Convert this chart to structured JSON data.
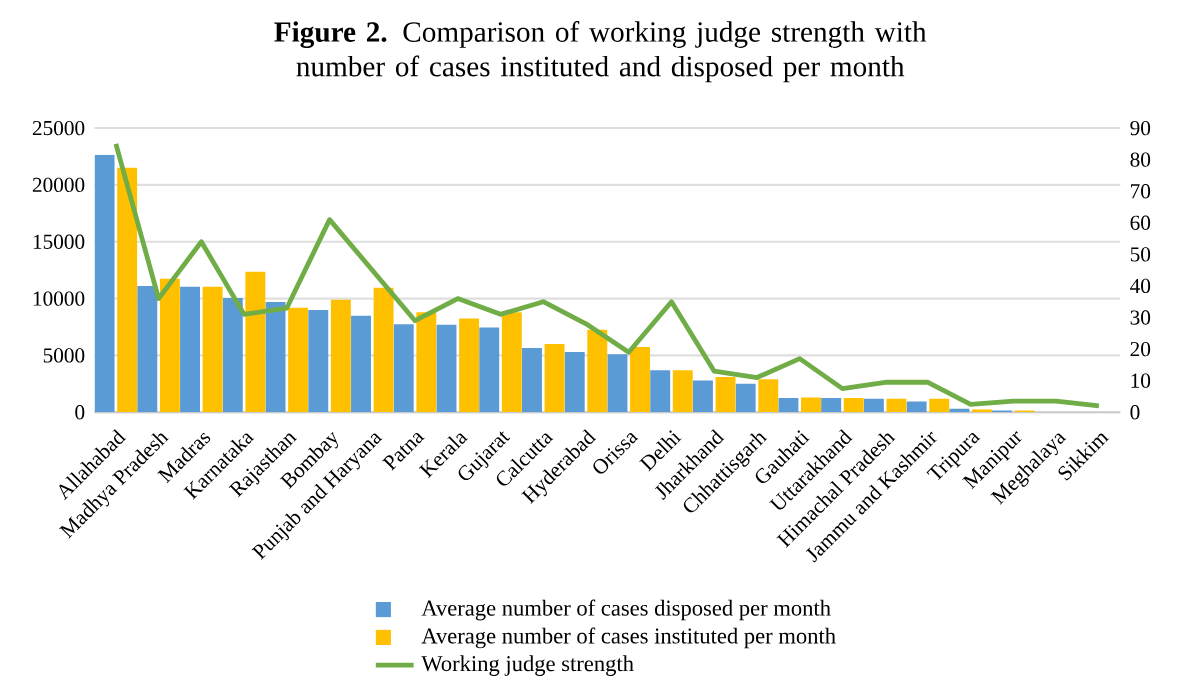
{
  "chart_data": {
    "type": "bar",
    "title": "**Figure 2.** Comparison of working judge strength with number of cases instituted and disposed per month",
    "categories": [
      "Allahabad",
      "Madhya Pradesh",
      "Madras",
      "Karnataka",
      "Rajasthan",
      "Bombay",
      "Punjab and Haryana",
      "Patna",
      "Kerala",
      "Gujarat",
      "Calcutta",
      "Hyderabad",
      "Orissa",
      "Delhi",
      "Jharkhand",
      "Chhattisgarh",
      "Gauhati",
      "Uttarakhand",
      "Himachal Pradesh",
      "Jammu and Kashmir",
      "Tripura",
      "Manipur",
      "Meghalaya",
      "Sikkim"
    ],
    "series": [
      {
        "name": "Average number of cases disposed per month",
        "color": "#5b9bd5",
        "values": [
          22650,
          11100,
          11050,
          10050,
          9700,
          9000,
          8500,
          7750,
          7700,
          7450,
          5650,
          5300,
          5100,
          3700,
          2800,
          2500,
          1250,
          1250,
          1200,
          950,
          300,
          150,
          null,
          null
        ]
      },
      {
        "name": "Average number of cases instituted per month",
        "color": "#ffc000",
        "values": [
          21500,
          11750,
          11050,
          12350,
          9200,
          9900,
          10950,
          8800,
          8250,
          8800,
          6000,
          7250,
          5750,
          3700,
          3100,
          2900,
          1300,
          1250,
          1200,
          1200,
          250,
          150,
          null,
          null
        ]
      },
      {
        "name": "Working judge strength",
        "color": "#70ad47",
        "type": "line",
        "axis": "y2",
        "values": [
          85,
          36,
          54,
          31,
          33,
          61,
          45,
          29,
          36,
          31,
          35,
          28,
          19,
          35,
          13,
          11,
          17,
          7.5,
          9.5,
          9.5,
          2.5,
          3.5,
          3.5,
          2
        ]
      }
    ],
    "ylim": [
      0,
      25000
    ],
    "yticks": [
      0,
      5000,
      10000,
      15000,
      20000,
      25000
    ],
    "y2lim": [
      0,
      90
    ],
    "y2ticks": [
      0,
      10,
      20,
      30,
      40,
      50,
      60,
      70,
      80,
      90
    ],
    "grid": "y",
    "legend": "bottom"
  }
}
